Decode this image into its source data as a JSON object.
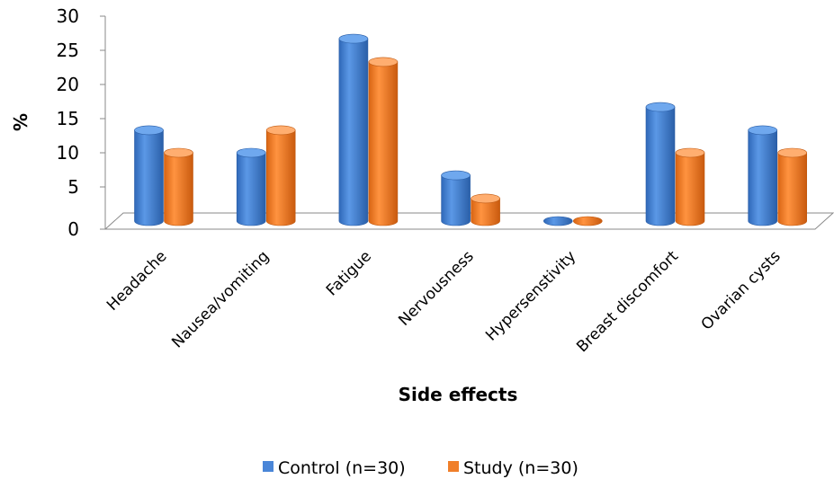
{
  "chart_data": {
    "type": "bar",
    "title": "",
    "xlabel": "Side effects",
    "ylabel": "%",
    "ylim": [
      0,
      30
    ],
    "yticks": [
      "0",
      "5",
      "10",
      "15",
      "20",
      "25",
      "30"
    ],
    "categories": [
      "Headache",
      "Nausea/vomiting",
      "Fatigue",
      "Nervousness",
      "Hypersenstivity",
      "Breast discomfort",
      "Ovarian cysts"
    ],
    "series": [
      {
        "name": "Control (n=30)",
        "color": "#4a86d8",
        "values": [
          13.3,
          10,
          26.7,
          6.7,
          0,
          16.7,
          13.3
        ]
      },
      {
        "name": "Study (n=30)",
        "color": "#f07f2a",
        "values": [
          10,
          13.3,
          23.3,
          3.3,
          0,
          10,
          10
        ]
      }
    ],
    "legend_position": "bottom",
    "grid": false
  }
}
